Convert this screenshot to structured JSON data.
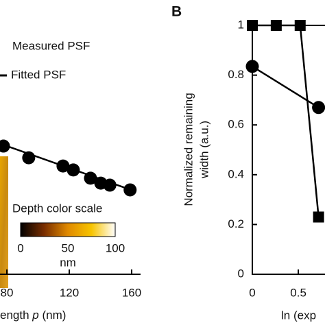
{
  "chart_data": [
    {
      "type": "scatter-line",
      "legend": [
        "Measured PSF",
        "Fitted PSF"
      ],
      "inset": {
        "title": "Depth color scale",
        "ticks": [
          0,
          50,
          100
        ],
        "unit": "nm",
        "colormap": [
          "#000000",
          "#7a2e00",
          "#e08a00",
          "#f7c400",
          "#ffffff"
        ]
      },
      "x_label": [
        "ength ",
        "p",
        " (nm)"
      ],
      "xlim": [
        75.6,
        165.7
      ],
      "xticks": [
        80,
        120,
        160
      ],
      "ylim": [
        0,
        1
      ],
      "x": [
        77.8,
        94,
        116,
        122.6,
        133.6,
        140.2,
        146,
        159
      ],
      "values": [
        0.515,
        0.468,
        0.435,
        0.419,
        0.386,
        0.366,
        0.358,
        0.339
      ],
      "fit_x": [
        75.6,
        160
      ],
      "fit_values": [
        0.525,
        0.338
      ],
      "color": "#000000"
    },
    {
      "type": "scatter-line",
      "title": "B",
      "y_label": [
        "Normalized remaining",
        "width (a.u.)"
      ],
      "x_label": "ln (exp",
      "xlim": [
        0,
        0.79
      ],
      "xticks": [
        0,
        0.5
      ],
      "ylim": [
        0,
        1
      ],
      "yticks": [
        0,
        0.2,
        0.4,
        0.6,
        0.8,
        1
      ],
      "series": [
        {
          "marker": "square",
          "color": "#000000",
          "x": [
            0,
            0.26,
            0.52,
            0.72
          ],
          "values": [
            1,
            1,
            1,
            0.23
          ]
        },
        {
          "marker": "circle",
          "color": "#000000",
          "x": [
            0,
            0.72
          ],
          "values": [
            0.835,
            0.67
          ]
        }
      ]
    }
  ]
}
